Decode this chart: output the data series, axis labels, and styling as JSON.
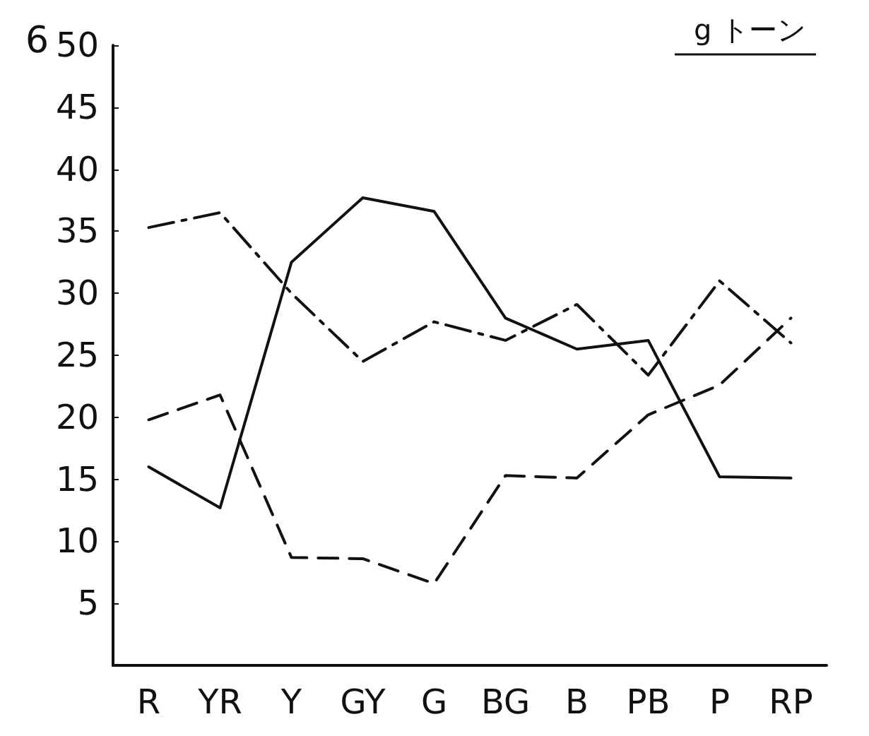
{
  "chart_data": {
    "type": "line",
    "title": "g トーン",
    "annotations": [
      "6"
    ],
    "categories": [
      "R",
      "YR",
      "Y",
      "GY",
      "G",
      "BG",
      "B",
      "PB",
      "P",
      "RP"
    ],
    "series": [
      {
        "color": "#111111",
        "line_style": "solid",
        "values": [
          16,
          12.7,
          32.5,
          37.7,
          36.6,
          28,
          25.5,
          26.2,
          15.2,
          15.1
        ]
      },
      {
        "color": "#111111",
        "line_style": "dashdot",
        "values": [
          35.3,
          36.5,
          30,
          24.5,
          27.7,
          26.2,
          29.1,
          23.4,
          31,
          26
        ]
      },
      {
        "color": "#111111",
        "line_style": "dashed",
        "values": [
          19.8,
          21.8,
          8.7,
          8.6,
          6.6,
          15.3,
          15.1,
          20.2,
          22.6,
          28
        ]
      }
    ],
    "ylim": [
      0,
      50
    ],
    "yticks": [
      5,
      10,
      15,
      20,
      25,
      30,
      35,
      40,
      45,
      50
    ],
    "marker": "none"
  }
}
